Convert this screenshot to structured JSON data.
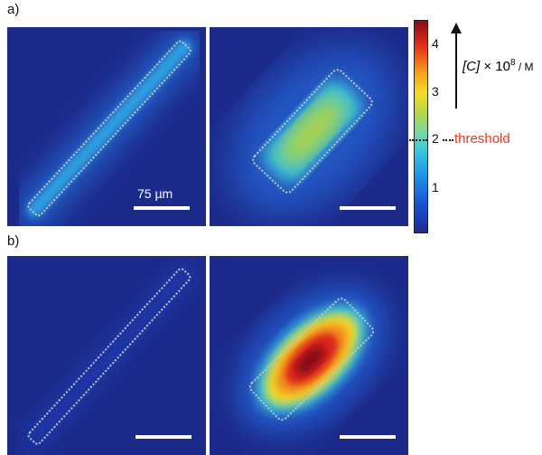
{
  "panel_labels": {
    "a": "a)",
    "b": "b)"
  },
  "scale_bar_label": "75 µm",
  "colorbar": {
    "ticks": [
      "4",
      "3",
      "2",
      "1"
    ],
    "tick_values": [
      4,
      3,
      2,
      1
    ],
    "range": [
      0,
      4.5
    ],
    "threshold_value": 2,
    "threshold_label": "threshold",
    "axis_label_italic": "[C]",
    "axis_label_rest": " × 10",
    "axis_label_exp": "8",
    "axis_label_unit": " / M"
  },
  "colors": {
    "background": "#1c2a8a",
    "outline": "#c8c8c8",
    "threshold": "#e8341c"
  }
}
